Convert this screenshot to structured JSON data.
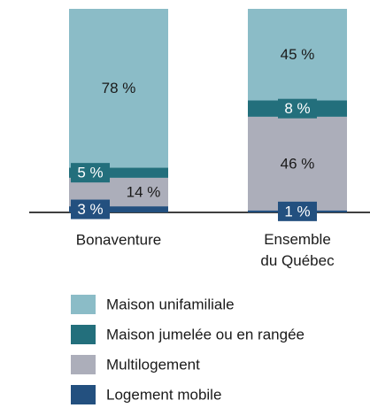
{
  "chart_data": {
    "type": "stacked_bar",
    "categories": [
      "Bonaventure",
      "Ensemble du Québec"
    ],
    "ylim": [
      0,
      100
    ],
    "series": [
      {
        "name": "Logement mobile",
        "color": "#23507f",
        "values": [
          3,
          1
        ],
        "value_labels": [
          "3 %",
          "1 %"
        ]
      },
      {
        "name": "Multilogement",
        "color": "#acaeba",
        "values": [
          14,
          46
        ],
        "value_labels": [
          "14 %",
          "46 %"
        ]
      },
      {
        "name": "Maison jumelée ou en rangée",
        "color": "#236f7c",
        "values": [
          5,
          8
        ],
        "value_labels": [
          "5 %",
          "8 %"
        ]
      },
      {
        "name": "Maison unifamiliale",
        "color": "#8bbcc7",
        "values": [
          78,
          45
        ],
        "value_labels": [
          "78 %",
          "45 %"
        ]
      }
    ],
    "legend_order": [
      3,
      2,
      1,
      0
    ]
  }
}
